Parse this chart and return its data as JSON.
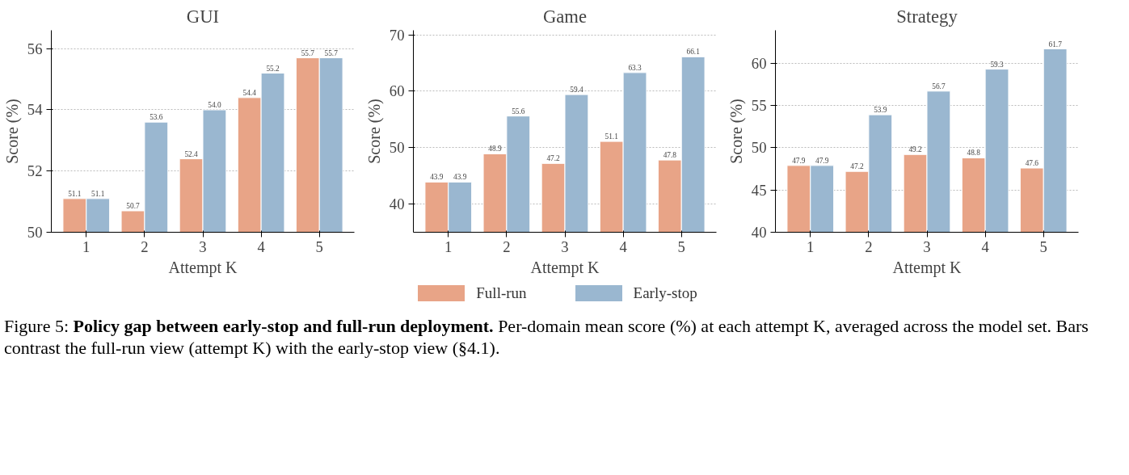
{
  "chart_data": [
    {
      "type": "bar",
      "title": "GUI",
      "xlabel": "Attempt K",
      "ylabel": "Score (%)",
      "categories": [
        "1",
        "2",
        "3",
        "4",
        "5"
      ],
      "series": [
        {
          "color": "#e8a487",
          "values": [
            51.1,
            50.7,
            52.4,
            54.4,
            55.7
          ],
          "value_labels": [
            "51.1",
            "50.7",
            "52.4",
            "54.4",
            "55.7"
          ]
        },
        {
          "color": "#9ab7d0",
          "values": [
            51.1,
            53.6,
            54.0,
            55.2,
            55.7
          ],
          "value_labels": [
            "51.1",
            "53.6",
            "54.0",
            "55.2",
            "55.7"
          ]
        }
      ],
      "ylim": [
        50,
        56.6
      ],
      "yticks": [
        50,
        52,
        54,
        56
      ],
      "grid": "y"
    },
    {
      "type": "bar",
      "title": "Game",
      "xlabel": "Attempt K",
      "ylabel": "Score (%)",
      "categories": [
        "1",
        "2",
        "3",
        "4",
        "5"
      ],
      "series": [
        {
          "name": "Full-run",
          "color": "#e8a487",
          "values": [
            43.9,
            48.9,
            47.2,
            51.1,
            47.8
          ],
          "value_labels": [
            "43.9",
            "48.9",
            "47.2",
            "51.1",
            "47.8"
          ]
        },
        {
          "name": "Early-stop",
          "color": "#9ab7d0",
          "values": [
            43.9,
            55.6,
            59.4,
            63.3,
            66.1
          ],
          "value_labels": [
            "43.9",
            "55.6",
            "59.4",
            "63.3",
            "66.1"
          ]
        }
      ],
      "ylim": [
        35,
        70.8
      ],
      "yticks": [
        40,
        50,
        60,
        70
      ],
      "grid": "y",
      "legend": "bottom",
      "annotations": [
        "Figure 5:",
        "Policy gap between early-stop and full-run deployment.",
        "Per-domain mean score (%) at each attempt K, averaged across the model set. Bars contrast the full-run view (attempt K) with the early-stop view (§4.1)."
      ]
    },
    {
      "type": "bar",
      "title": "Strategy",
      "xlabel": "Attempt K",
      "ylabel": "Score (%)",
      "categories": [
        "1",
        "2",
        "3",
        "4",
        "5"
      ],
      "series": [
        {
          "color": "#e8a487",
          "values": [
            47.9,
            47.2,
            49.2,
            48.8,
            47.6
          ],
          "value_labels": [
            "47.9",
            "47.2",
            "49.2",
            "48.8",
            "47.6"
          ]
        },
        {
          "color": "#9ab7d0",
          "values": [
            47.9,
            53.9,
            56.7,
            59.3,
            61.7
          ],
          "value_labels": [
            "47.9",
            "53.9",
            "56.7",
            "59.3",
            "61.7"
          ]
        }
      ],
      "ylim": [
        40,
        63.9
      ],
      "yticks": [
        40,
        45,
        50,
        55,
        60
      ],
      "grid": "y"
    }
  ]
}
